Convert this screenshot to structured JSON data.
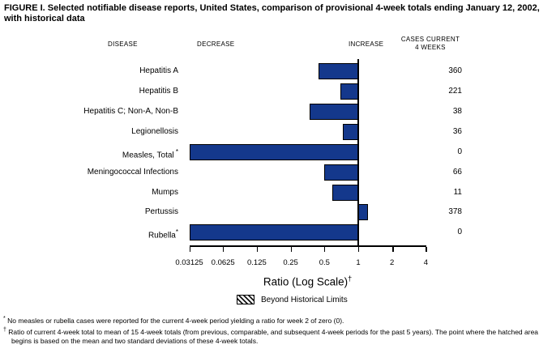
{
  "title": "FIGURE I. Selected notifiable disease reports, United States, comparison of provisional 4-week totals ending January 12, 2002, with historical data",
  "columns": {
    "disease": "DISEASE",
    "decrease": "DECREASE",
    "increase": "INCREASE",
    "cases_current": "CASES CURRENT 4 WEEKS"
  },
  "chart_data": {
    "type": "bar",
    "orientation": "horizontal",
    "scale": "log2",
    "title": "FIGURE I. Selected notifiable disease reports, United States, comparison of provisional 4-week totals ending January 12, 2002, with historical data",
    "xlabel": "Ratio (Log Scale)",
    "xlabel_footnote_marker": "†",
    "xlim": [
      0.03125,
      4
    ],
    "baseline": 1,
    "axis_ticks": [
      0.03125,
      0.0625,
      0.125,
      0.25,
      0.5,
      1,
      2,
      4
    ],
    "axis_tick_labels": [
      "0.03125",
      "0.0625",
      "0.125",
      "0.25",
      "0.5",
      "1",
      "2",
      "4"
    ],
    "bar_color": "#14388c",
    "rows": [
      {
        "disease": "Hepatitis A",
        "footnote": "",
        "ratio": 0.44,
        "cases": "360"
      },
      {
        "disease": "Hepatitis B",
        "footnote": "",
        "ratio": 0.69,
        "cases": "221"
      },
      {
        "disease": "Hepatitis C; Non-A, Non-B",
        "footnote": "",
        "ratio": 0.37,
        "cases": "38"
      },
      {
        "disease": "Legionellosis",
        "footnote": "",
        "ratio": 0.73,
        "cases": "36"
      },
      {
        "disease": "Measles, Total",
        "footnote": " *",
        "ratio": 0,
        "cases": "0"
      },
      {
        "disease": "Meningococcal Infections",
        "footnote": "",
        "ratio": 0.5,
        "cases": "66"
      },
      {
        "disease": "Mumps",
        "footnote": "",
        "ratio": 0.59,
        "cases": "11"
      },
      {
        "disease": "Pertussis",
        "footnote": "",
        "ratio": 1.22,
        "cases": "378"
      },
      {
        "disease": "Rubella",
        "footnote": "*",
        "ratio": 0,
        "cases": "0"
      }
    ],
    "legend": {
      "swatch": "diagonal-hatch",
      "label": "Beyond Historical Limits"
    }
  },
  "footnotes": [
    {
      "marker": "*",
      "text": "No measles or rubella cases were reported for the current 4-week period yielding a ratio for week 2 of zero (0)."
    },
    {
      "marker": "†",
      "text": "Ratio of current 4-week total to mean of 15 4-week totals (from previous, comparable, and subsequent 4-week periods for the past 5 years). The point where the hatched area begins is based on the mean and two standard deviations of these 4-week totals."
    }
  ]
}
